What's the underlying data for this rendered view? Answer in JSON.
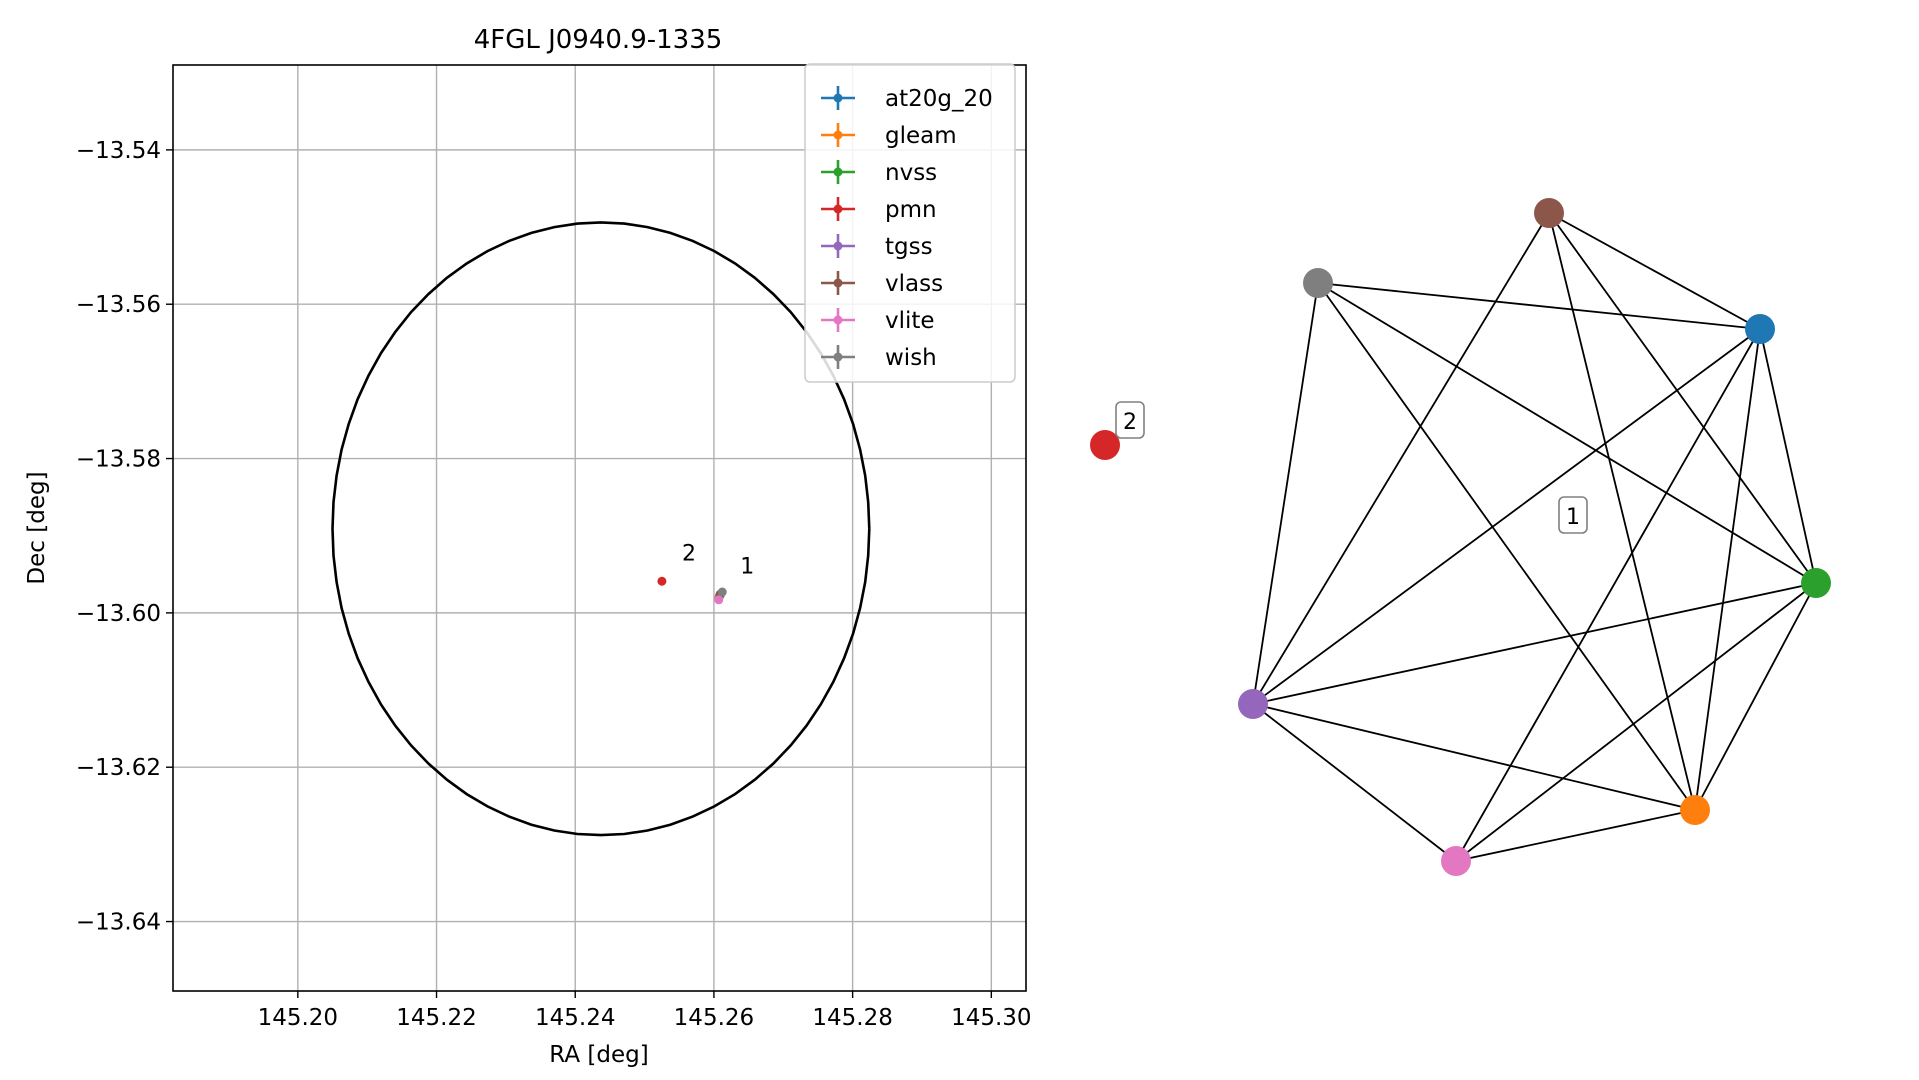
{
  "chart_data": [
    {
      "type": "scatter",
      "title": "4FGL J0940.9-1335",
      "xlabel": "RA [deg]",
      "ylabel": "Dec [deg]",
      "xlim": [
        145.182,
        145.305
      ],
      "ylim": [
        -13.649,
        -13.529
      ],
      "xticks": [
        145.2,
        145.22,
        145.24,
        145.26,
        145.28,
        145.3
      ],
      "xtick_labels": [
        "145.20",
        "145.22",
        "145.24",
        "145.26",
        "145.28",
        "145.30"
      ],
      "yticks": [
        -13.54,
        -13.56,
        -13.58,
        -13.6,
        -13.62,
        -13.64
      ],
      "ytick_labels": [
        "−13.54",
        "−13.56",
        "−13.58",
        "−13.60",
        "−13.62",
        "−13.64"
      ],
      "grid": true,
      "legend_position": "top-right",
      "series": [
        {
          "name": "at20g_20",
          "color": "#1f77b4",
          "points": [
            {
              "x": 145.2609,
              "y": -13.5976
            }
          ]
        },
        {
          "name": "gleam",
          "color": "#ff7f0e",
          "points": [
            {
              "x": 145.2607,
              "y": -13.598
            }
          ]
        },
        {
          "name": "nvss",
          "color": "#2ca02c",
          "points": [
            {
              "x": 145.2609,
              "y": -13.5977
            }
          ]
        },
        {
          "name": "pmn",
          "color": "#d62728",
          "points": [
            {
              "x": 145.2525,
              "y": -13.5959
            }
          ]
        },
        {
          "name": "tgss",
          "color": "#9467bd",
          "points": [
            {
              "x": 145.2608,
              "y": -13.5978
            }
          ]
        },
        {
          "name": "vlass",
          "color": "#8c564b",
          "points": [
            {
              "x": 145.2609,
              "y": -13.5976
            }
          ]
        },
        {
          "name": "vlite",
          "color": "#e377c2",
          "points": [
            {
              "x": 145.2607,
              "y": -13.5983
            }
          ]
        },
        {
          "name": "wish",
          "color": "#7f7f7f",
          "points": [
            {
              "x": 145.2612,
              "y": -13.5973
            }
          ]
        }
      ],
      "ellipse": {
        "center_x": 145.2437,
        "center_y": -13.5891,
        "semi_x": 0.0387,
        "semi_y": 0.0397,
        "color": "#000000"
      },
      "annotations": [
        {
          "text": "1",
          "x": 145.2638,
          "y": -13.5949
        },
        {
          "text": "2",
          "x": 145.2554,
          "y": -13.5932
        }
      ]
    },
    {
      "type": "network",
      "nodes": [
        {
          "id": "pmn",
          "color": "#d62728"
        },
        {
          "id": "vlass",
          "color": "#8c564b"
        },
        {
          "id": "wish",
          "color": "#7f7f7f"
        },
        {
          "id": "at20g_20",
          "color": "#1f77b4"
        },
        {
          "id": "nvss",
          "color": "#2ca02c"
        },
        {
          "id": "gleam",
          "color": "#ff7f0e"
        },
        {
          "id": "vlite",
          "color": "#e377c2"
        },
        {
          "id": "tgss",
          "color": "#9467bd"
        }
      ],
      "edges": [
        [
          "vlass",
          "at20g_20"
        ],
        [
          "vlass",
          "nvss"
        ],
        [
          "vlass",
          "gleam"
        ],
        [
          "vlass",
          "tgss"
        ],
        [
          "wish",
          "at20g_20"
        ],
        [
          "wish",
          "nvss"
        ],
        [
          "wish",
          "gleam"
        ],
        [
          "wish",
          "tgss"
        ],
        [
          "at20g_20",
          "nvss"
        ],
        [
          "at20g_20",
          "gleam"
        ],
        [
          "at20g_20",
          "vlite"
        ],
        [
          "at20g_20",
          "tgss"
        ],
        [
          "nvss",
          "gleam"
        ],
        [
          "nvss",
          "vlite"
        ],
        [
          "nvss",
          "tgss"
        ],
        [
          "gleam",
          "vlite"
        ],
        [
          "gleam",
          "tgss"
        ],
        [
          "vlite",
          "tgss"
        ]
      ],
      "group_labels": [
        "1",
        "2"
      ]
    }
  ]
}
